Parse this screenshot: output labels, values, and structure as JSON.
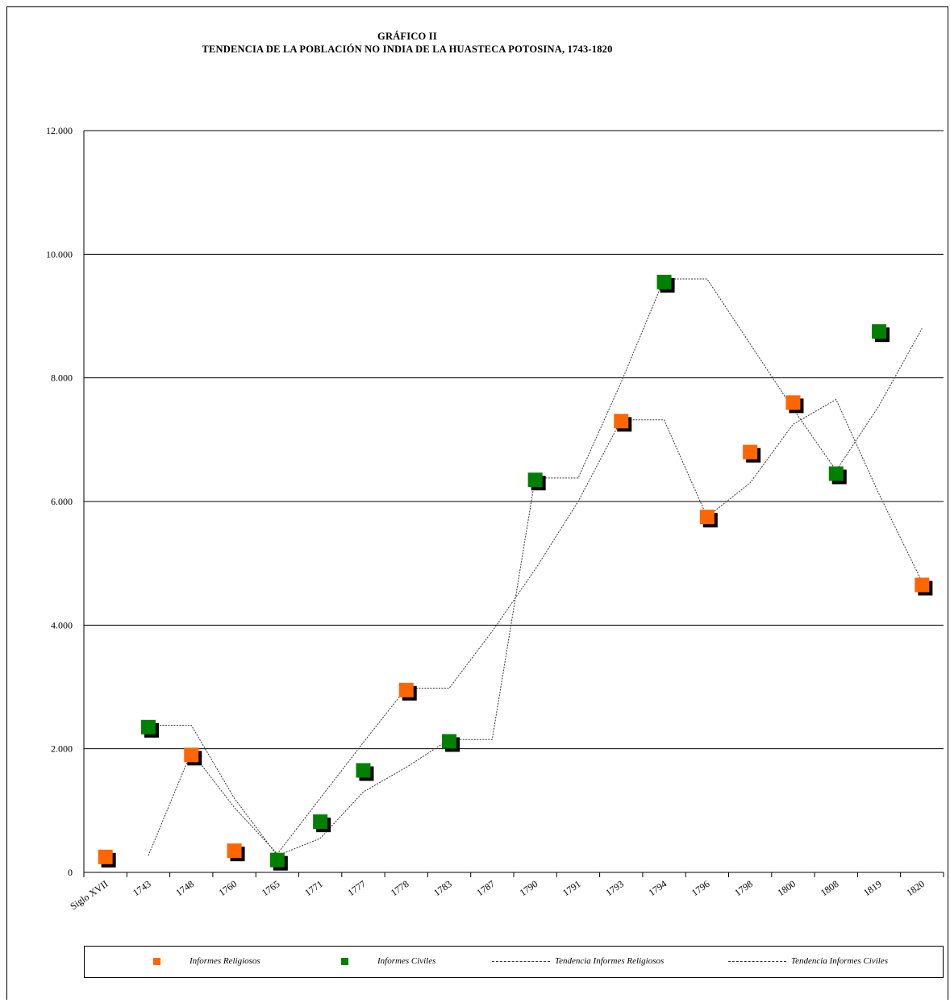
{
  "title_line1": "GRÁFICO II",
  "title_line2": "TENDENCIA DE LA POBLACIÓN NO INDIA DE LA HUASTECA POTOSINA, 1743-1820",
  "colors": {
    "religiosos": "#ff6600",
    "civiles": "#008000",
    "trend": "#333333",
    "shadow": "#000000"
  },
  "legend": {
    "religiosos": "Informes Religiosos",
    "civiles": "Informes Civiles",
    "trend_religiosos": "Tendencia Informes Religiosos",
    "trend_civiles": "Tendencia Informes Civiles"
  },
  "chart_data": {
    "type": "scatter",
    "categories": [
      "Siglo XVII",
      "1743",
      "1748",
      "1760",
      "1765",
      "1771",
      "1777",
      "1778",
      "1783",
      "1787",
      "1790",
      "1791",
      "1793",
      "1794",
      "1796",
      "1798",
      "1800",
      "1808",
      "1819",
      "1820"
    ],
    "y_ticks": [
      "0",
      "2.000",
      "4.000",
      "6.000",
      "8.000",
      "10.000",
      "12.000"
    ],
    "ylim": [
      0,
      12000
    ],
    "grid": true,
    "legend_position": "bottom",
    "series": [
      {
        "name": "Informes Religiosos",
        "kind": "points",
        "color": "#ff6600",
        "values": [
          250,
          null,
          1900,
          null,
          null,
          null,
          null,
          2950,
          null,
          null,
          null,
          null,
          7300,
          null,
          5750,
          6800,
          7600,
          null,
          null,
          4650
        ],
        "extra": [
          {
            "index": 3,
            "value": 350
          }
        ]
      },
      {
        "name": "Informes Civiles",
        "kind": "points",
        "color": "#008000",
        "values": [
          null,
          2350,
          null,
          null,
          200,
          820,
          1650,
          null,
          2120,
          null,
          6350,
          null,
          null,
          9550,
          null,
          null,
          null,
          6450,
          8750,
          null
        ]
      },
      {
        "name": "Tendencia Informes Religiosos",
        "kind": "trend",
        "values": [
          null,
          270,
          1950,
          1050,
          300,
          1200,
          2100,
          2980,
          2980,
          3900,
          4900,
          6000,
          7320,
          7320,
          5750,
          6300,
          7250,
          7650,
          6120,
          4700
        ]
      },
      {
        "name": "Tendencia Informes Civiles",
        "kind": "trend",
        "values": [
          null,
          2380,
          2380,
          1200,
          270,
          550,
          1300,
          1700,
          2150,
          2150,
          6380,
          6380,
          7930,
          9600,
          9600,
          8550,
          7500,
          6500,
          7550,
          8800
        ]
      }
    ]
  }
}
